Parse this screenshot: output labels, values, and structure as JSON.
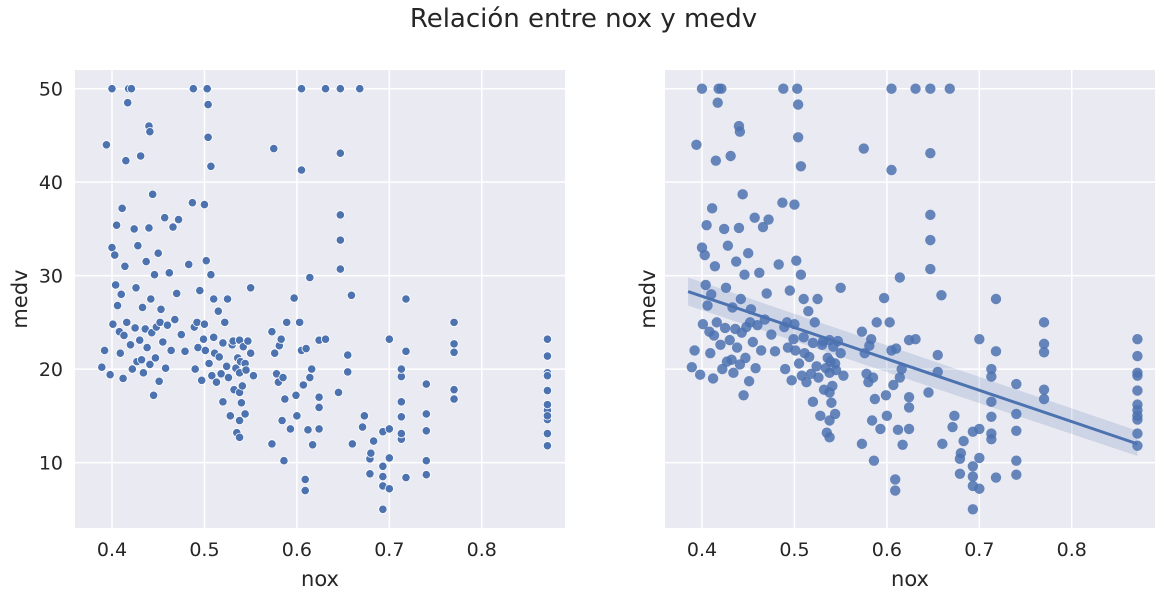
{
  "title": "Relación entre nox y medv",
  "colors": {
    "background": "#EAEAF2",
    "grid": "#FFFFFF",
    "point": "#4C72B0",
    "text": "#262626"
  },
  "chart_data": [
    {
      "type": "scatter",
      "xlabel": "nox",
      "ylabel": "medv",
      "xlim": [
        0.36,
        0.89
      ],
      "ylim": [
        3.0,
        52.0
      ],
      "xticks": [
        "0.4",
        "0.5",
        "0.6",
        "0.7",
        "0.8"
      ],
      "yticks": [
        "10",
        "20",
        "30",
        "40",
        "50"
      ],
      "grid": true,
      "points": [
        [
          0.389,
          20.2
        ],
        [
          0.392,
          22.0
        ],
        [
          0.394,
          44.0
        ],
        [
          0.398,
          19.4
        ],
        [
          0.4,
          50.0
        ],
        [
          0.4,
          33.0
        ],
        [
          0.401,
          24.8
        ],
        [
          0.403,
          32.2
        ],
        [
          0.404,
          29.0
        ],
        [
          0.405,
          35.4
        ],
        [
          0.406,
          26.8
        ],
        [
          0.408,
          24.0
        ],
        [
          0.409,
          21.7
        ],
        [
          0.41,
          28.0
        ],
        [
          0.411,
          37.2
        ],
        [
          0.412,
          19.0
        ],
        [
          0.413,
          23.6
        ],
        [
          0.414,
          31.0
        ],
        [
          0.415,
          42.3
        ],
        [
          0.416,
          25.0
        ],
        [
          0.417,
          48.5
        ],
        [
          0.418,
          50.0
        ],
        [
          0.42,
          22.6
        ],
        [
          0.421,
          50.0
        ],
        [
          0.422,
          20.0
        ],
        [
          0.424,
          35.0
        ],
        [
          0.425,
          24.4
        ],
        [
          0.426,
          28.7
        ],
        [
          0.427,
          20.8
        ],
        [
          0.428,
          33.2
        ],
        [
          0.43,
          23.1
        ],
        [
          0.431,
          42.8
        ],
        [
          0.432,
          21.0
        ],
        [
          0.433,
          26.6
        ],
        [
          0.434,
          19.6
        ],
        [
          0.436,
          24.3
        ],
        [
          0.437,
          31.5
        ],
        [
          0.438,
          22.3
        ],
        [
          0.44,
          35.1
        ],
        [
          0.44,
          46.0
        ],
        [
          0.441,
          45.4
        ],
        [
          0.441,
          20.5
        ],
        [
          0.442,
          27.5
        ],
        [
          0.443,
          23.9
        ],
        [
          0.444,
          38.7
        ],
        [
          0.445,
          17.2
        ],
        [
          0.446,
          30.1
        ],
        [
          0.447,
          21.2
        ],
        [
          0.448,
          24.5
        ],
        [
          0.45,
          32.4
        ],
        [
          0.451,
          18.7
        ],
        [
          0.452,
          25.0
        ],
        [
          0.453,
          26.4
        ],
        [
          0.455,
          22.9
        ],
        [
          0.457,
          36.2
        ],
        [
          0.458,
          20.1
        ],
        [
          0.46,
          24.7
        ],
        [
          0.462,
          30.3
        ],
        [
          0.464,
          22.0
        ],
        [
          0.466,
          35.2
        ],
        [
          0.468,
          25.3
        ],
        [
          0.47,
          28.1
        ],
        [
          0.472,
          36.0
        ],
        [
          0.475,
          23.7
        ],
        [
          0.479,
          21.9
        ],
        [
          0.483,
          31.2
        ],
        [
          0.487,
          37.8
        ],
        [
          0.488,
          50.0
        ],
        [
          0.489,
          24.5
        ],
        [
          0.49,
          20.0
        ],
        [
          0.492,
          25.0
        ],
        [
          0.493,
          22.3
        ],
        [
          0.495,
          28.4
        ],
        [
          0.497,
          18.8
        ],
        [
          0.499,
          23.2
        ],
        [
          0.5,
          37.6
        ],
        [
          0.5,
          24.8
        ],
        [
          0.501,
          22.0
        ],
        [
          0.502,
          31.6
        ],
        [
          0.503,
          50.0
        ],
        [
          0.504,
          48.3
        ],
        [
          0.504,
          44.8
        ],
        [
          0.505,
          20.6
        ],
        [
          0.507,
          41.7
        ],
        [
          0.507,
          30.1
        ],
        [
          0.508,
          19.3
        ],
        [
          0.51,
          27.5
        ],
        [
          0.51,
          23.4
        ],
        [
          0.511,
          21.7
        ],
        [
          0.513,
          18.6
        ],
        [
          0.515,
          26.2
        ],
        [
          0.516,
          21.3
        ],
        [
          0.518,
          19.5
        ],
        [
          0.52,
          22.8
        ],
        [
          0.52,
          16.5
        ],
        [
          0.522,
          25.0
        ],
        [
          0.524,
          20.3
        ],
        [
          0.525,
          27.5
        ],
        [
          0.526,
          19.1
        ],
        [
          0.528,
          15.0
        ],
        [
          0.53,
          22.6
        ],
        [
          0.531,
          23.0
        ],
        [
          0.532,
          17.8
        ],
        [
          0.534,
          20.1
        ],
        [
          0.535,
          13.2
        ],
        [
          0.536,
          21.2
        ],
        [
          0.538,
          19.6
        ],
        [
          0.538,
          14.5
        ],
        [
          0.538,
          12.7
        ],
        [
          0.538,
          17.5
        ],
        [
          0.538,
          23.1
        ],
        [
          0.539,
          20.8
        ],
        [
          0.54,
          16.4
        ],
        [
          0.541,
          18.2
        ],
        [
          0.542,
          22.4
        ],
        [
          0.544,
          20.6
        ],
        [
          0.544,
          15.2
        ],
        [
          0.545,
          19.9
        ],
        [
          0.547,
          23.0
        ],
        [
          0.55,
          21.7
        ],
        [
          0.55,
          28.7
        ],
        [
          0.553,
          19.3
        ],
        [
          0.573,
          24.0
        ],
        [
          0.573,
          12.0
        ],
        [
          0.575,
          43.6
        ],
        [
          0.576,
          21.7
        ],
        [
          0.578,
          19.5
        ],
        [
          0.58,
          18.6
        ],
        [
          0.581,
          22.5
        ],
        [
          0.583,
          23.2
        ],
        [
          0.584,
          14.5
        ],
        [
          0.585,
          19.1
        ],
        [
          0.586,
          10.2
        ],
        [
          0.587,
          16.8
        ],
        [
          0.589,
          25.0
        ],
        [
          0.593,
          13.6
        ],
        [
          0.597,
          27.6
        ],
        [
          0.599,
          17.2
        ],
        [
          0.6,
          15.0
        ],
        [
          0.603,
          25.0
        ],
        [
          0.605,
          50.0
        ],
        [
          0.605,
          41.3
        ],
        [
          0.605,
          22.0
        ],
        [
          0.607,
          18.3
        ],
        [
          0.609,
          8.2
        ],
        [
          0.609,
          7.0
        ],
        [
          0.61,
          22.2
        ],
        [
          0.612,
          13.5
        ],
        [
          0.614,
          19.1
        ],
        [
          0.614,
          29.8
        ],
        [
          0.616,
          20.0
        ],
        [
          0.617,
          11.9
        ],
        [
          0.624,
          23.1
        ],
        [
          0.624,
          15.9
        ],
        [
          0.624,
          13.6
        ],
        [
          0.624,
          17.0
        ],
        [
          0.631,
          23.2
        ],
        [
          0.631,
          50.0
        ],
        [
          0.645,
          17.5
        ],
        [
          0.647,
          36.5
        ],
        [
          0.647,
          30.7
        ],
        [
          0.647,
          50.0
        ],
        [
          0.647,
          43.1
        ],
        [
          0.647,
          33.8
        ],
        [
          0.655,
          21.5
        ],
        [
          0.655,
          19.7
        ],
        [
          0.659,
          27.9
        ],
        [
          0.66,
          12.0
        ],
        [
          0.668,
          50.0
        ],
        [
          0.671,
          13.8
        ],
        [
          0.673,
          15.0
        ],
        [
          0.679,
          10.4
        ],
        [
          0.679,
          8.8
        ],
        [
          0.68,
          11.0
        ],
        [
          0.683,
          12.3
        ],
        [
          0.693,
          13.3
        ],
        [
          0.693,
          9.6
        ],
        [
          0.693,
          7.5
        ],
        [
          0.693,
          5.0
        ],
        [
          0.693,
          8.5
        ],
        [
          0.7,
          13.6
        ],
        [
          0.7,
          10.5
        ],
        [
          0.7,
          23.2
        ],
        [
          0.7,
          7.2
        ],
        [
          0.713,
          14.9
        ],
        [
          0.713,
          16.5
        ],
        [
          0.713,
          12.5
        ],
        [
          0.713,
          19.2
        ],
        [
          0.713,
          20.0
        ],
        [
          0.713,
          13.1
        ],
        [
          0.718,
          21.9
        ],
        [
          0.718,
          27.5
        ],
        [
          0.718,
          8.4
        ],
        [
          0.74,
          18.4
        ],
        [
          0.74,
          13.4
        ],
        [
          0.74,
          10.2
        ],
        [
          0.74,
          15.2
        ],
        [
          0.74,
          8.7
        ],
        [
          0.77,
          25.0
        ],
        [
          0.77,
          21.8
        ],
        [
          0.77,
          22.7
        ],
        [
          0.77,
          17.8
        ],
        [
          0.77,
          16.8
        ],
        [
          0.871,
          23.2
        ],
        [
          0.871,
          21.4
        ],
        [
          0.871,
          19.6
        ],
        [
          0.871,
          17.7
        ],
        [
          0.871,
          15.6
        ],
        [
          0.871,
          14.6
        ],
        [
          0.871,
          13.1
        ],
        [
          0.871,
          11.8
        ],
        [
          0.871,
          15.0
        ],
        [
          0.871,
          16.2
        ],
        [
          0.871,
          19.3
        ]
      ]
    },
    {
      "type": "scatter",
      "xlabel": "nox",
      "ylabel": "medv",
      "xlim": [
        0.36,
        0.89
      ],
      "ylim": [
        3.0,
        52.0
      ],
      "xticks": [
        "0.4",
        "0.5",
        "0.6",
        "0.7",
        "0.8"
      ],
      "yticks": [],
      "grid": true,
      "regression": {
        "x": [
          0.385,
          0.871
        ],
        "y": [
          28.3,
          12.0
        ],
        "ci_low_start": 26.8,
        "ci_high_start": 29.8,
        "ci_low_end": 10.7,
        "ci_high_end": 13.4
      },
      "points_same_as_panel": 0
    }
  ]
}
